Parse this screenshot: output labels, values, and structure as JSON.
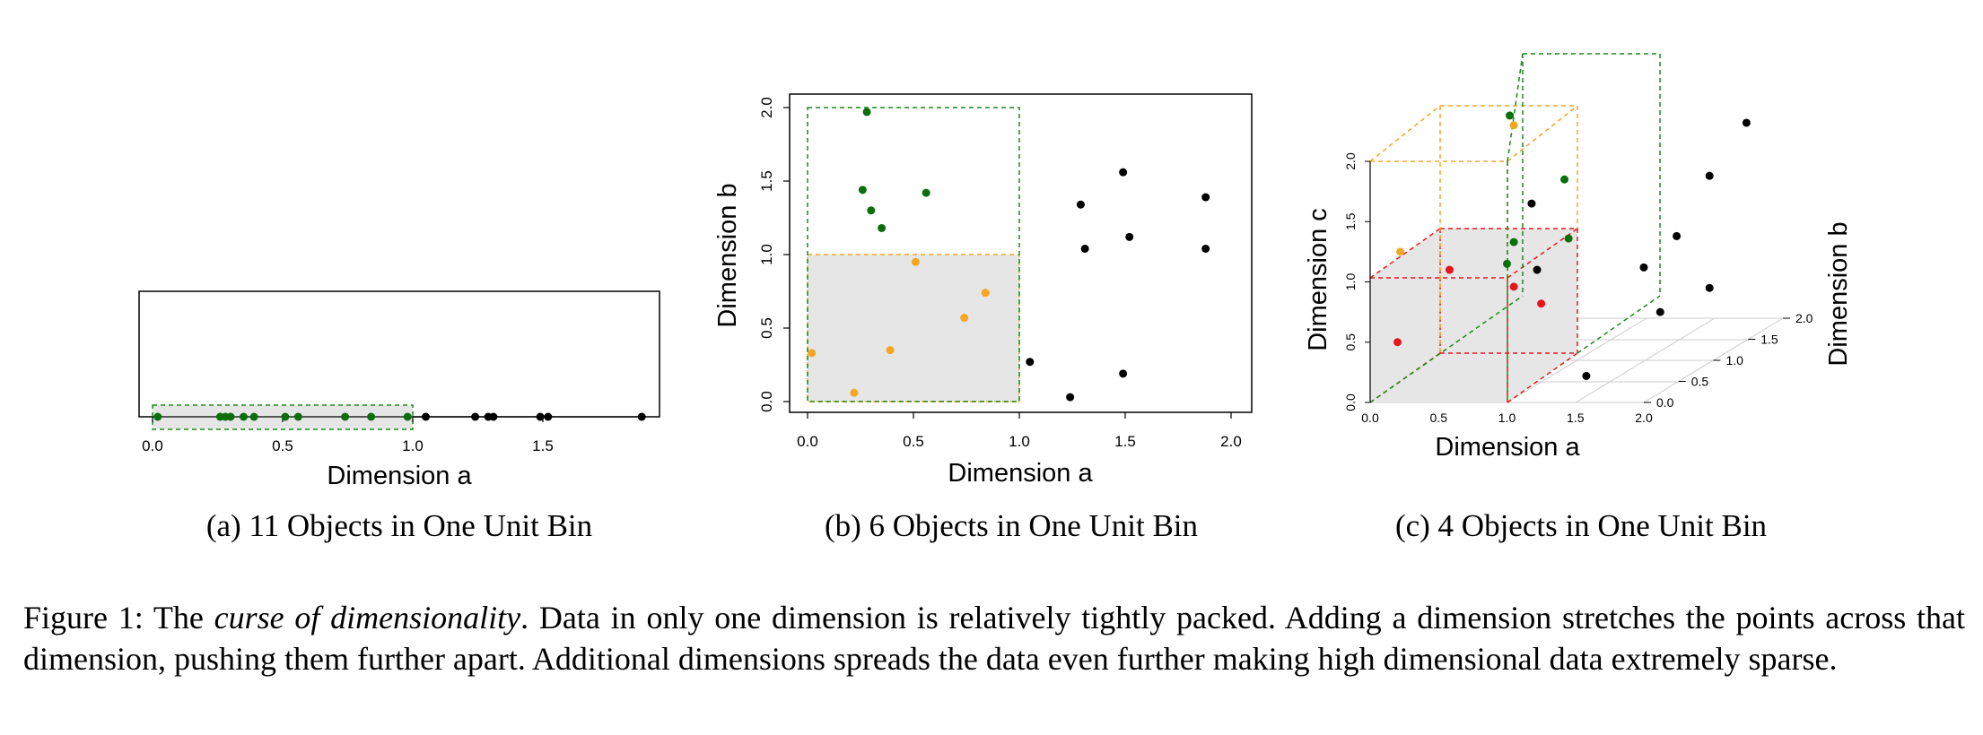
{
  "colors": {
    "green": "#0a6e0a",
    "orange": "#f5a623",
    "red": "#e8141b",
    "black": "#000000",
    "bin_fill": "#e6e6e6"
  },
  "panel_a": {
    "subcaption": "(a) 11 Objects in One Unit Bin",
    "xlabel": "Dimension a",
    "xticks": [
      "0.0",
      "0.5",
      "1.0",
      "1.5"
    ]
  },
  "panel_b": {
    "subcaption": "(b) 6 Objects in One Unit Bin",
    "xlabel": "Dimension a",
    "ylabel": "Dimension b",
    "xticks": [
      "0.0",
      "0.5",
      "1.0",
      "1.5",
      "2.0"
    ],
    "yticks": [
      "0.0",
      "0.5",
      "1.0",
      "1.5",
      "2.0"
    ]
  },
  "panel_c": {
    "subcaption": "(c) 4 Objects in One Unit Bin",
    "xlabel": "Dimension a",
    "ylabel": "Dimension c",
    "zlabel": "Dimension b",
    "xticks": [
      "0.0",
      "0.5",
      "1.0",
      "1.5",
      "2.0"
    ],
    "zticks": [
      "0.0",
      "0.5",
      "1.0",
      "1.5",
      "2.0"
    ],
    "dticks": [
      "0.0",
      "0.5",
      "1.0",
      "1.5",
      "2.0"
    ]
  },
  "caption": {
    "prefix": "Figure 1: The ",
    "emphasis": "curse of dimensionality",
    "body": ". Data in only one dimension is relatively tightly packed. Adding a dimension stretches the points across that dimension, pushing them further apart. Additional dimensions spreads the data even further making high dimensional data extremely sparse."
  },
  "chart_data": [
    {
      "type": "scatter",
      "xlabel": "Dimension a",
      "xlim": [
        0,
        2
      ],
      "points": [
        {
          "a": 0.02,
          "group": "green"
        },
        {
          "a": 0.26,
          "group": "green"
        },
        {
          "a": 0.28,
          "group": "green"
        },
        {
          "a": 0.3,
          "group": "green"
        },
        {
          "a": 0.35,
          "group": "green"
        },
        {
          "a": 0.39,
          "group": "green"
        },
        {
          "a": 0.51,
          "group": "green"
        },
        {
          "a": 0.56,
          "group": "green"
        },
        {
          "a": 0.74,
          "group": "green"
        },
        {
          "a": 0.84,
          "group": "green"
        },
        {
          "a": 0.98,
          "group": "green"
        },
        {
          "a": 1.05,
          "group": "black"
        },
        {
          "a": 1.24,
          "group": "black"
        },
        {
          "a": 1.29,
          "group": "black"
        },
        {
          "a": 1.31,
          "group": "black"
        },
        {
          "a": 1.49,
          "group": "black"
        },
        {
          "a": 1.52,
          "group": "black"
        },
        {
          "a": 1.88,
          "group": "black"
        }
      ]
    },
    {
      "type": "scatter",
      "xlabel": "Dimension a",
      "ylabel": "Dimension b",
      "xlim": [
        0,
        2
      ],
      "ylim": [
        0,
        2
      ],
      "points": [
        {
          "a": 0.02,
          "b": 0.33,
          "group": "orange"
        },
        {
          "a": 0.22,
          "b": 0.06,
          "group": "orange"
        },
        {
          "a": 0.39,
          "b": 0.35,
          "group": "orange"
        },
        {
          "a": 0.51,
          "b": 0.95,
          "group": "orange"
        },
        {
          "a": 0.74,
          "b": 0.57,
          "group": "orange"
        },
        {
          "a": 0.84,
          "b": 0.74,
          "group": "orange"
        },
        {
          "a": 0.26,
          "b": 1.44,
          "group": "green"
        },
        {
          "a": 0.28,
          "b": 1.97,
          "group": "green"
        },
        {
          "a": 0.3,
          "b": 1.3,
          "group": "green"
        },
        {
          "a": 0.35,
          "b": 1.18,
          "group": "green"
        },
        {
          "a": 0.56,
          "b": 1.42,
          "group": "green"
        },
        {
          "a": 1.05,
          "b": 0.27,
          "group": "black"
        },
        {
          "a": 1.24,
          "b": 0.03,
          "group": "black"
        },
        {
          "a": 1.29,
          "b": 1.34,
          "group": "black"
        },
        {
          "a": 1.31,
          "b": 1.04,
          "group": "black"
        },
        {
          "a": 1.49,
          "b": 1.56,
          "group": "black"
        },
        {
          "a": 1.49,
          "b": 0.19,
          "group": "black"
        },
        {
          "a": 1.52,
          "b": 1.12,
          "group": "black"
        },
        {
          "a": 1.88,
          "b": 1.39,
          "group": "black"
        },
        {
          "a": 1.88,
          "b": 1.04,
          "group": "black"
        }
      ]
    },
    {
      "type": "scatter",
      "xlabel": "Dimension a",
      "ylabel": "Dimension c",
      "zlabel": "Dimension b",
      "xlim": [
        0,
        2
      ],
      "ylim": [
        0,
        2
      ],
      "zlim": [
        0,
        2
      ],
      "points": [
        {
          "a": 0.2,
          "b": 0.0,
          "c": 0.5,
          "group": "red"
        },
        {
          "a": 0.58,
          "b": 0.0,
          "c": 1.1,
          "group": "red"
        },
        {
          "a": 1.05,
          "b": 0.0,
          "c": 0.96,
          "group": "red"
        },
        {
          "a": 1.25,
          "b": 0.0,
          "c": 0.82,
          "group": "red"
        },
        {
          "a": 0.22,
          "b": 0.0,
          "c": 1.25,
          "group": "orange"
        },
        {
          "a": 1.05,
          "b": 0.0,
          "c": 2.3,
          "group": "orange"
        },
        {
          "a": 1.02,
          "b": 0.0,
          "c": 2.38,
          "group": "green"
        },
        {
          "a": 1.42,
          "b": 0.0,
          "c": 1.85,
          "group": "green"
        },
        {
          "a": 1.05,
          "b": 0.0,
          "c": 1.33,
          "group": "green"
        },
        {
          "a": 1.45,
          "b": 0.0,
          "c": 1.36,
          "group": "green"
        },
        {
          "a": 1.0,
          "b": 0.0,
          "c": 1.15,
          "group": "green"
        },
        {
          "a": 1.18,
          "b": 0.0,
          "c": 1.65,
          "group": "black"
        },
        {
          "a": 1.22,
          "b": 0.0,
          "c": 1.1,
          "group": "black"
        },
        {
          "a": 1.58,
          "b": 0.0,
          "c": 0.22,
          "group": "black"
        },
        {
          "a": 2.0,
          "b": 0.0,
          "c": 1.12,
          "group": "black"
        },
        {
          "a": 2.12,
          "b": 0.0,
          "c": 0.75,
          "group": "black"
        },
        {
          "a": 2.24,
          "b": 0.0,
          "c": 1.38,
          "group": "black"
        },
        {
          "a": 2.48,
          "b": 0.0,
          "c": 0.95,
          "group": "black"
        },
        {
          "a": 2.48,
          "b": 0.0,
          "c": 1.88,
          "group": "black"
        },
        {
          "a": 2.75,
          "b": 0.0,
          "c": 2.32,
          "group": "black"
        }
      ]
    }
  ]
}
